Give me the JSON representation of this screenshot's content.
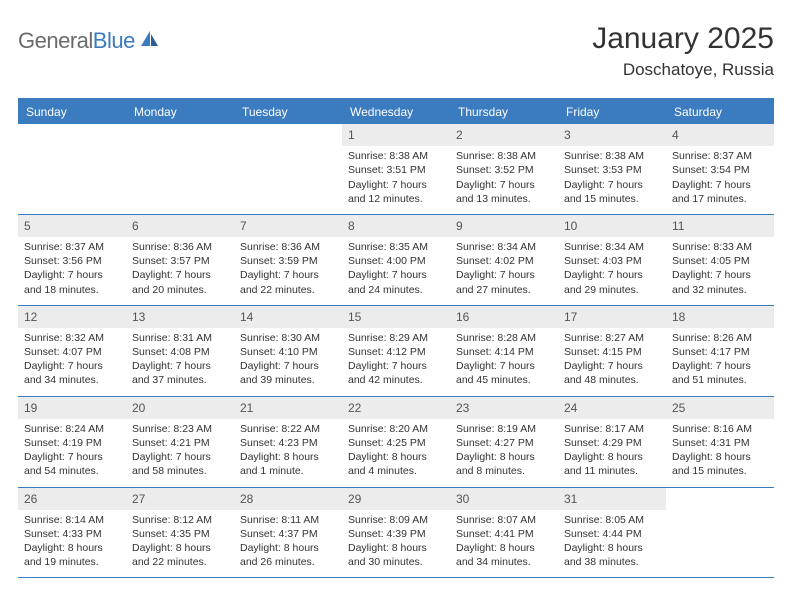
{
  "logo": {
    "text_gray": "General",
    "text_blue": "Blue"
  },
  "title": "January 2025",
  "location": "Doschatoye, Russia",
  "colors": {
    "header_bg": "#3b7bbf",
    "daynum_bg": "#ececec",
    "text": "#333333",
    "logo_gray": "#6b6b6b",
    "logo_blue": "#3b7bbf",
    "page_bg": "#ffffff"
  },
  "typography": {
    "title_fontsize": 30,
    "location_fontsize": 17,
    "dayheader_fontsize": 12,
    "cell_fontsize": 10.5,
    "logo_fontsize": 22
  },
  "day_headers": [
    "Sunday",
    "Monday",
    "Tuesday",
    "Wednesday",
    "Thursday",
    "Friday",
    "Saturday"
  ],
  "weeks": [
    [
      null,
      null,
      null,
      {
        "n": "1",
        "sr": "Sunrise: 8:38 AM",
        "ss": "Sunset: 3:51 PM",
        "d1": "Daylight: 7 hours",
        "d2": "and 12 minutes."
      },
      {
        "n": "2",
        "sr": "Sunrise: 8:38 AM",
        "ss": "Sunset: 3:52 PM",
        "d1": "Daylight: 7 hours",
        "d2": "and 13 minutes."
      },
      {
        "n": "3",
        "sr": "Sunrise: 8:38 AM",
        "ss": "Sunset: 3:53 PM",
        "d1": "Daylight: 7 hours",
        "d2": "and 15 minutes."
      },
      {
        "n": "4",
        "sr": "Sunrise: 8:37 AM",
        "ss": "Sunset: 3:54 PM",
        "d1": "Daylight: 7 hours",
        "d2": "and 17 minutes."
      }
    ],
    [
      {
        "n": "5",
        "sr": "Sunrise: 8:37 AM",
        "ss": "Sunset: 3:56 PM",
        "d1": "Daylight: 7 hours",
        "d2": "and 18 minutes."
      },
      {
        "n": "6",
        "sr": "Sunrise: 8:36 AM",
        "ss": "Sunset: 3:57 PM",
        "d1": "Daylight: 7 hours",
        "d2": "and 20 minutes."
      },
      {
        "n": "7",
        "sr": "Sunrise: 8:36 AM",
        "ss": "Sunset: 3:59 PM",
        "d1": "Daylight: 7 hours",
        "d2": "and 22 minutes."
      },
      {
        "n": "8",
        "sr": "Sunrise: 8:35 AM",
        "ss": "Sunset: 4:00 PM",
        "d1": "Daylight: 7 hours",
        "d2": "and 24 minutes."
      },
      {
        "n": "9",
        "sr": "Sunrise: 8:34 AM",
        "ss": "Sunset: 4:02 PM",
        "d1": "Daylight: 7 hours",
        "d2": "and 27 minutes."
      },
      {
        "n": "10",
        "sr": "Sunrise: 8:34 AM",
        "ss": "Sunset: 4:03 PM",
        "d1": "Daylight: 7 hours",
        "d2": "and 29 minutes."
      },
      {
        "n": "11",
        "sr": "Sunrise: 8:33 AM",
        "ss": "Sunset: 4:05 PM",
        "d1": "Daylight: 7 hours",
        "d2": "and 32 minutes."
      }
    ],
    [
      {
        "n": "12",
        "sr": "Sunrise: 8:32 AM",
        "ss": "Sunset: 4:07 PM",
        "d1": "Daylight: 7 hours",
        "d2": "and 34 minutes."
      },
      {
        "n": "13",
        "sr": "Sunrise: 8:31 AM",
        "ss": "Sunset: 4:08 PM",
        "d1": "Daylight: 7 hours",
        "d2": "and 37 minutes."
      },
      {
        "n": "14",
        "sr": "Sunrise: 8:30 AM",
        "ss": "Sunset: 4:10 PM",
        "d1": "Daylight: 7 hours",
        "d2": "and 39 minutes."
      },
      {
        "n": "15",
        "sr": "Sunrise: 8:29 AM",
        "ss": "Sunset: 4:12 PM",
        "d1": "Daylight: 7 hours",
        "d2": "and 42 minutes."
      },
      {
        "n": "16",
        "sr": "Sunrise: 8:28 AM",
        "ss": "Sunset: 4:14 PM",
        "d1": "Daylight: 7 hours",
        "d2": "and 45 minutes."
      },
      {
        "n": "17",
        "sr": "Sunrise: 8:27 AM",
        "ss": "Sunset: 4:15 PM",
        "d1": "Daylight: 7 hours",
        "d2": "and 48 minutes."
      },
      {
        "n": "18",
        "sr": "Sunrise: 8:26 AM",
        "ss": "Sunset: 4:17 PM",
        "d1": "Daylight: 7 hours",
        "d2": "and 51 minutes."
      }
    ],
    [
      {
        "n": "19",
        "sr": "Sunrise: 8:24 AM",
        "ss": "Sunset: 4:19 PM",
        "d1": "Daylight: 7 hours",
        "d2": "and 54 minutes."
      },
      {
        "n": "20",
        "sr": "Sunrise: 8:23 AM",
        "ss": "Sunset: 4:21 PM",
        "d1": "Daylight: 7 hours",
        "d2": "and 58 minutes."
      },
      {
        "n": "21",
        "sr": "Sunrise: 8:22 AM",
        "ss": "Sunset: 4:23 PM",
        "d1": "Daylight: 8 hours",
        "d2": "and 1 minute."
      },
      {
        "n": "22",
        "sr": "Sunrise: 8:20 AM",
        "ss": "Sunset: 4:25 PM",
        "d1": "Daylight: 8 hours",
        "d2": "and 4 minutes."
      },
      {
        "n": "23",
        "sr": "Sunrise: 8:19 AM",
        "ss": "Sunset: 4:27 PM",
        "d1": "Daylight: 8 hours",
        "d2": "and 8 minutes."
      },
      {
        "n": "24",
        "sr": "Sunrise: 8:17 AM",
        "ss": "Sunset: 4:29 PM",
        "d1": "Daylight: 8 hours",
        "d2": "and 11 minutes."
      },
      {
        "n": "25",
        "sr": "Sunrise: 8:16 AM",
        "ss": "Sunset: 4:31 PM",
        "d1": "Daylight: 8 hours",
        "d2": "and 15 minutes."
      }
    ],
    [
      {
        "n": "26",
        "sr": "Sunrise: 8:14 AM",
        "ss": "Sunset: 4:33 PM",
        "d1": "Daylight: 8 hours",
        "d2": "and 19 minutes."
      },
      {
        "n": "27",
        "sr": "Sunrise: 8:12 AM",
        "ss": "Sunset: 4:35 PM",
        "d1": "Daylight: 8 hours",
        "d2": "and 22 minutes."
      },
      {
        "n": "28",
        "sr": "Sunrise: 8:11 AM",
        "ss": "Sunset: 4:37 PM",
        "d1": "Daylight: 8 hours",
        "d2": "and 26 minutes."
      },
      {
        "n": "29",
        "sr": "Sunrise: 8:09 AM",
        "ss": "Sunset: 4:39 PM",
        "d1": "Daylight: 8 hours",
        "d2": "and 30 minutes."
      },
      {
        "n": "30",
        "sr": "Sunrise: 8:07 AM",
        "ss": "Sunset: 4:41 PM",
        "d1": "Daylight: 8 hours",
        "d2": "and 34 minutes."
      },
      {
        "n": "31",
        "sr": "Sunrise: 8:05 AM",
        "ss": "Sunset: 4:44 PM",
        "d1": "Daylight: 8 hours",
        "d2": "and 38 minutes."
      },
      null
    ]
  ]
}
